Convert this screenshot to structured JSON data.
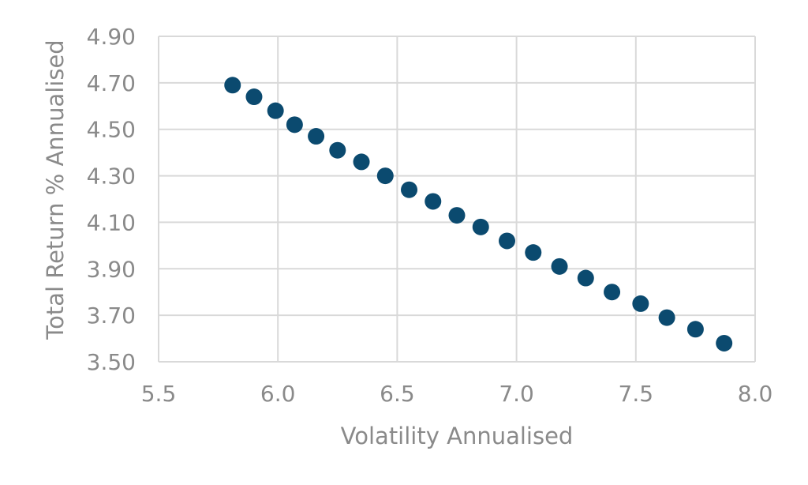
{
  "chart_data": {
    "type": "scatter",
    "title": "",
    "xlabel": "Volatility Annualised",
    "ylabel": "Total Return % Annualised",
    "xlim": [
      5.5,
      8.0
    ],
    "ylim": [
      3.5,
      4.9
    ],
    "x_ticks": [
      "5.5",
      "6.0",
      "6.5",
      "7.0",
      "7.5",
      "8.0"
    ],
    "y_ticks": [
      "3.50",
      "3.70",
      "3.90",
      "4.10",
      "4.30",
      "4.50",
      "4.70",
      "4.90"
    ],
    "grid": true,
    "legend": "none",
    "point_color": "#0b4a6f",
    "series": [
      {
        "x": [
          5.81,
          5.9,
          5.99,
          6.07,
          6.16,
          6.25,
          6.35,
          6.45,
          6.55,
          6.65,
          6.75,
          6.85,
          6.96,
          7.07,
          7.18,
          7.29,
          7.4,
          7.52,
          7.63,
          7.75,
          7.87
        ],
        "y": [
          4.69,
          4.64,
          4.58,
          4.52,
          4.47,
          4.41,
          4.36,
          4.3,
          4.24,
          4.19,
          4.13,
          4.08,
          4.02,
          3.97,
          3.91,
          3.86,
          3.8,
          3.75,
          3.69,
          3.64,
          3.58
        ]
      }
    ]
  }
}
